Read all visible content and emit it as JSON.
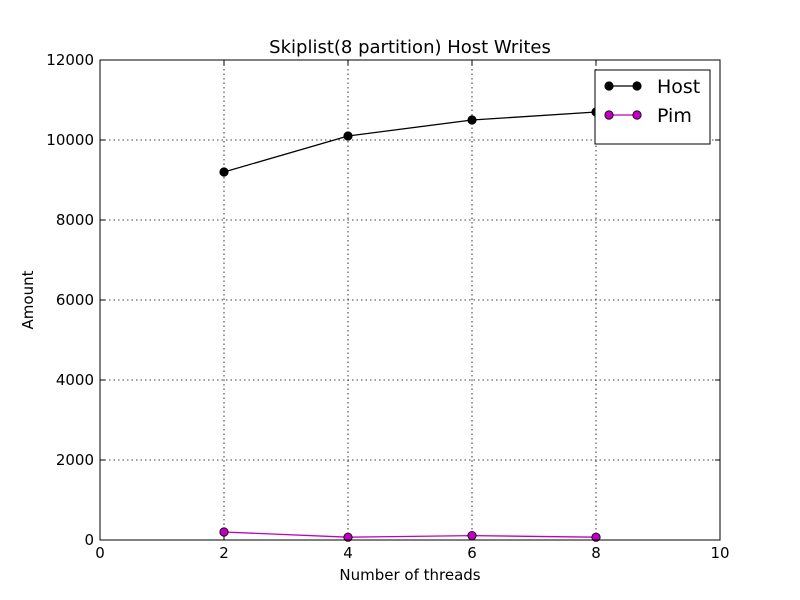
{
  "chart_data": {
    "type": "line",
    "title": "Skiplist(8 partition) Host Writes",
    "xlabel": "Number of threads",
    "ylabel": "Amount",
    "xlim": [
      0,
      10
    ],
    "ylim": [
      0,
      12000
    ],
    "xticks": [
      0,
      2,
      4,
      6,
      8,
      10
    ],
    "yticks": [
      0,
      2000,
      4000,
      6000,
      8000,
      10000,
      12000
    ],
    "x": [
      2,
      4,
      6,
      8
    ],
    "grid": true,
    "legend_position": "top-right",
    "series": [
      {
        "name": "Host",
        "color": "#000000",
        "values": [
          9200,
          10100,
          10500,
          10700
        ]
      },
      {
        "name": "Pim",
        "color": "#bf00bf",
        "values": [
          200,
          70,
          110,
          70
        ]
      }
    ]
  }
}
